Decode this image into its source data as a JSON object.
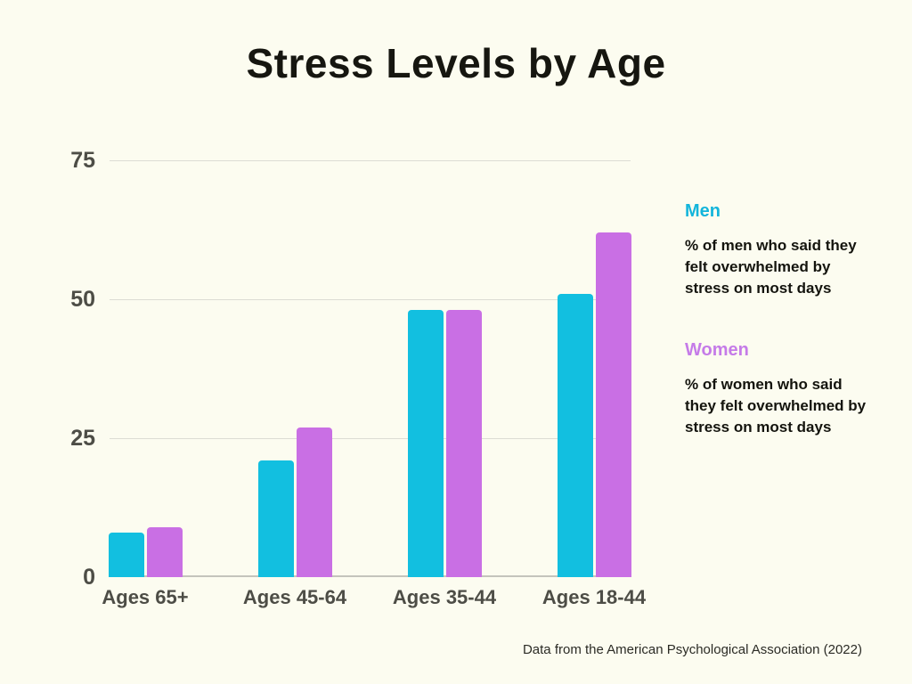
{
  "page": {
    "background": "#FCFCF0",
    "title": "Stress Levels by Age",
    "title_color": "#161610",
    "footer": "Data from the American Psychological Association (2022)",
    "footer_color": "#2B2B25"
  },
  "legend": {
    "men": {
      "label": "Men",
      "color": "#13B5DB",
      "description": "% of men who said they felt overwhelmed by stress on most days"
    },
    "women": {
      "label": "Women",
      "color": "#C57BE8",
      "description": "% of women who said they felt overwhelmed by stress on most days"
    },
    "description_color": "#14140E"
  },
  "chart_data": {
    "type": "bar",
    "title": "Stress Levels by Age",
    "categories": [
      "Ages 65+",
      "Ages 45-64",
      "Ages 35-44",
      "Ages 18-44"
    ],
    "series": [
      {
        "name": "Men",
        "color": "#12BFE0",
        "values": [
          8,
          21,
          48,
          51
        ]
      },
      {
        "name": "Women",
        "color": "#C96FE4",
        "values": [
          9,
          27,
          48,
          62
        ]
      }
    ],
    "xlabel": "",
    "ylabel": "",
    "yticks": [
      0,
      25,
      50,
      75
    ],
    "ylim": [
      0,
      75
    ],
    "grid": true,
    "legend_position": "right",
    "axis_label_color": "#4D4D46",
    "gridline_color": "#DCDCD4",
    "baseline_color": "#C4C4BC"
  }
}
